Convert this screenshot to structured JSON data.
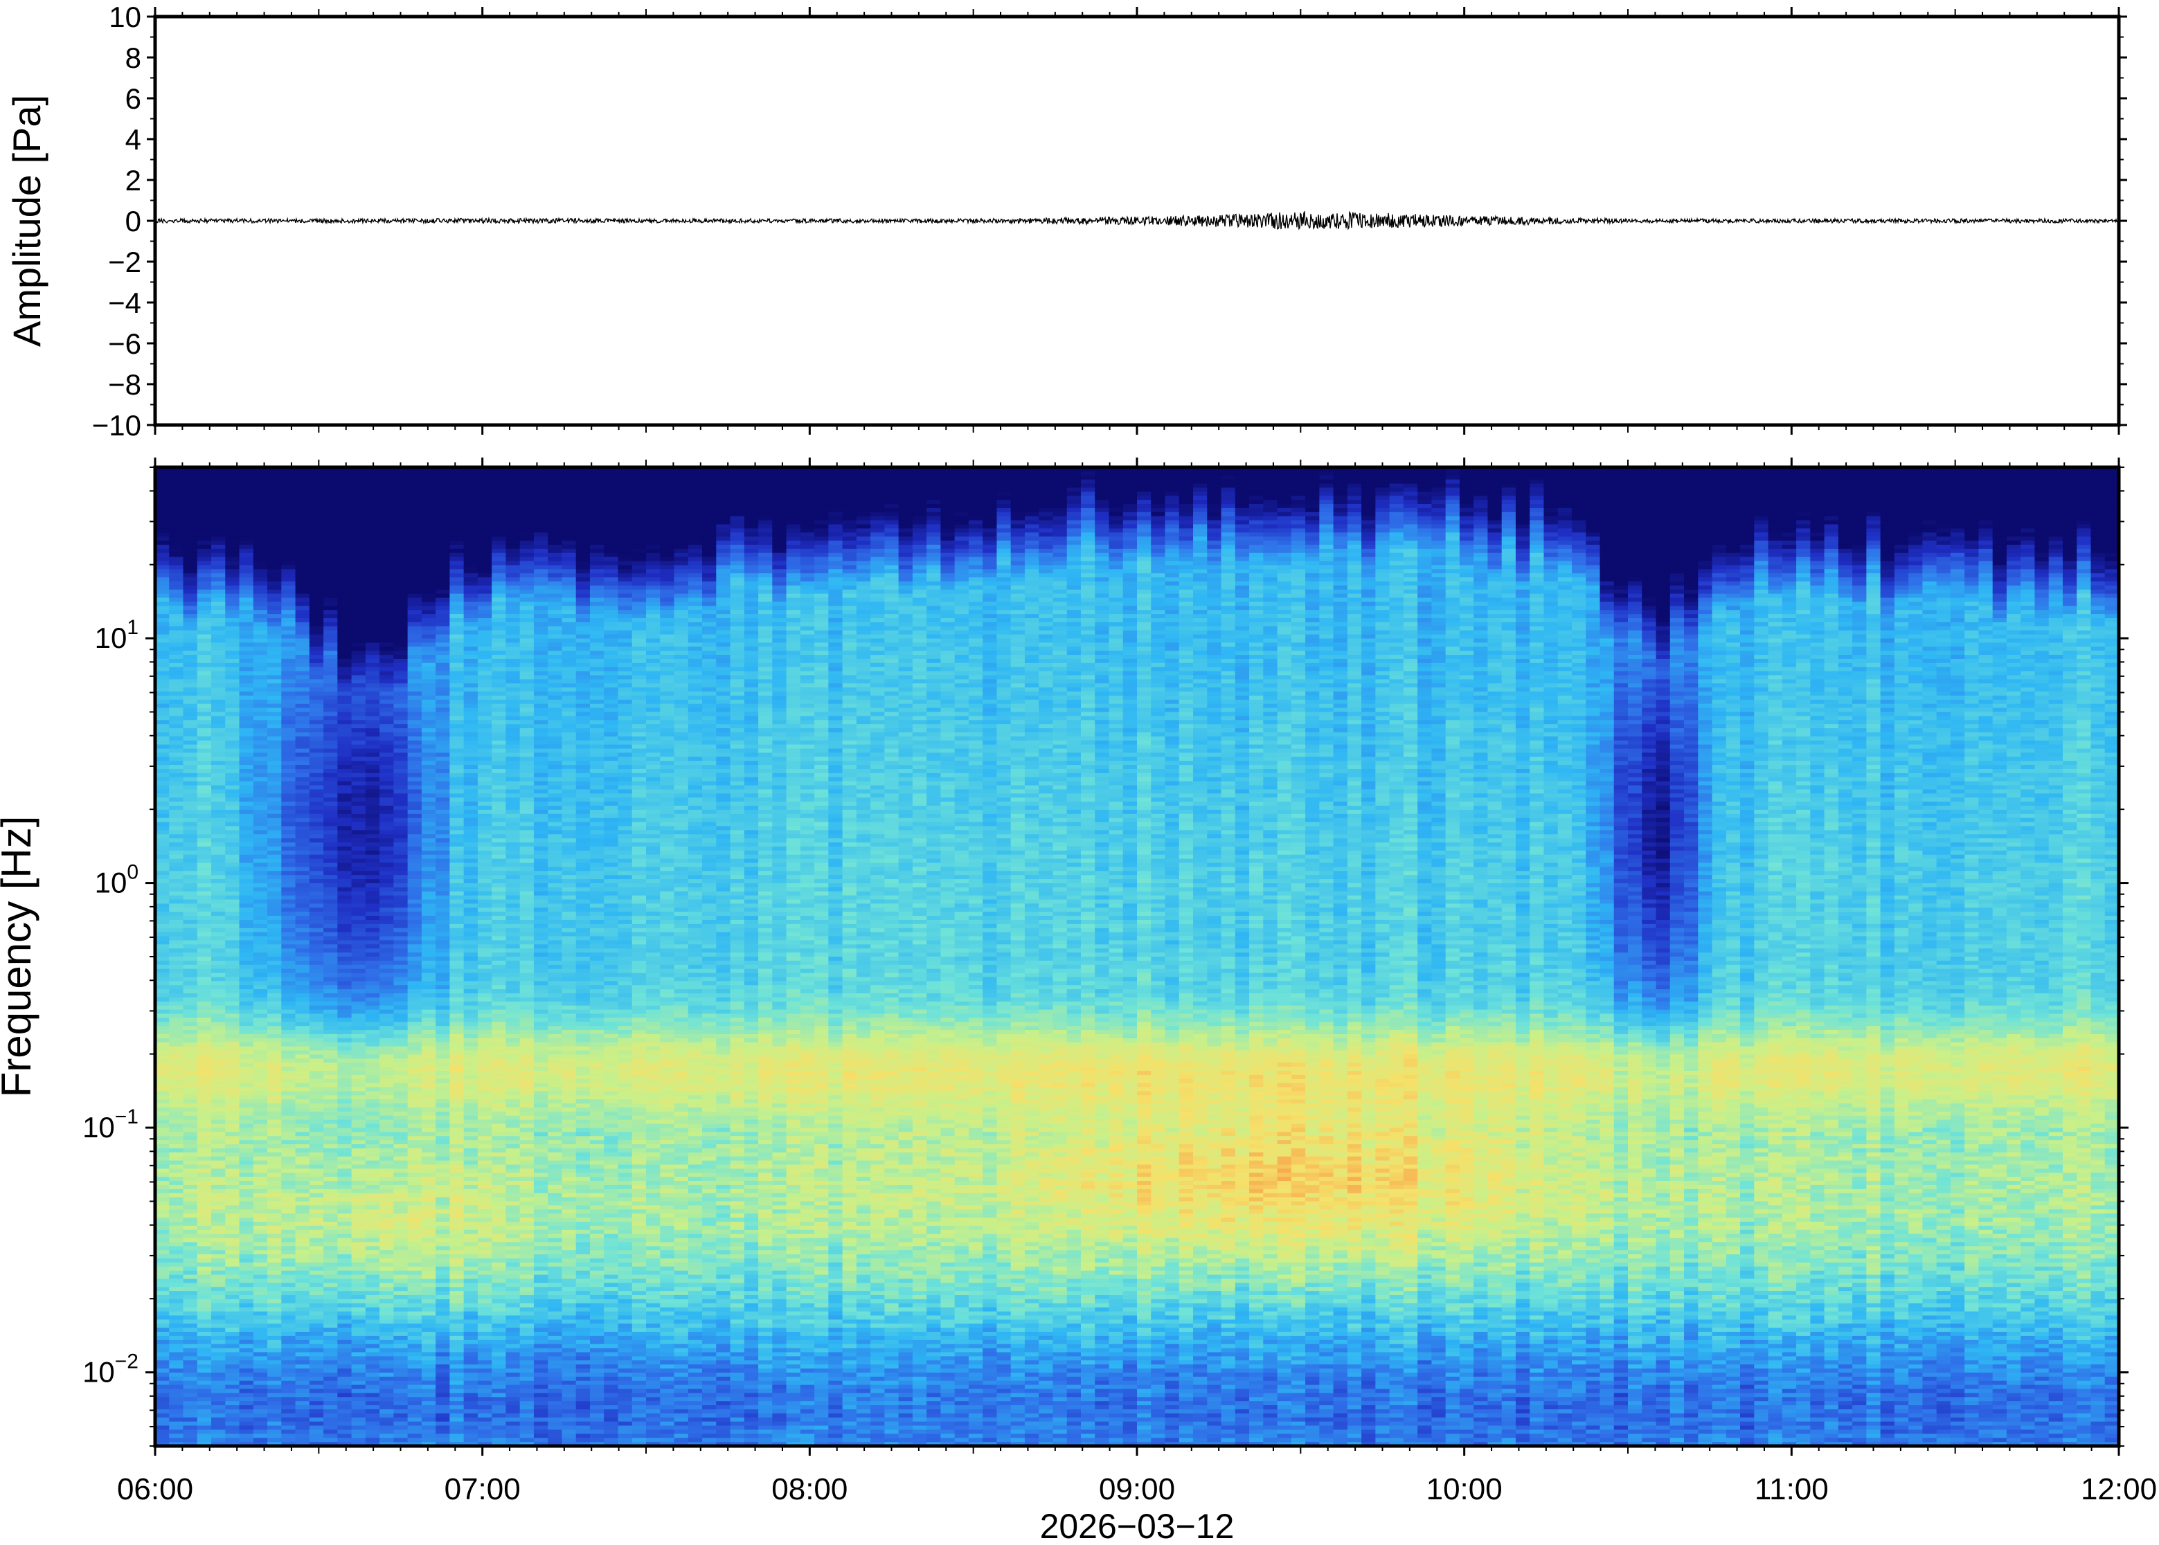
{
  "chart_data": [
    {
      "type": "line",
      "name": "waveform",
      "ylabel": "Amplitude [Pa]",
      "xlabel": "",
      "ylim": [
        -10,
        10
      ],
      "yticks": [
        "10",
        "8",
        "6",
        "4",
        "2",
        "0",
        "−2",
        "−4",
        "−6",
        "−8",
        "−10"
      ],
      "ytick_values": [
        10,
        8,
        6,
        4,
        2,
        0,
        -2,
        -4,
        -6,
        -8,
        -10
      ],
      "xlim": [
        "06:00",
        "12:00"
      ],
      "series": [
        {
          "color": "#000000",
          "x": [
            "06:00",
            "06:30",
            "07:00",
            "07:30",
            "08:00",
            "08:30",
            "09:00",
            "09:15",
            "09:30",
            "09:45",
            "10:00",
            "10:30",
            "11:00",
            "11:30",
            "12:00"
          ],
          "envelope": [
            0.1,
            0.1,
            0.12,
            0.1,
            0.1,
            0.1,
            0.2,
            0.3,
            0.45,
            0.4,
            0.25,
            0.1,
            0.1,
            0.1,
            0.1
          ]
        }
      ],
      "grid": false
    },
    {
      "type": "heatmap",
      "name": "spectrogram",
      "ylabel": "Frequency [Hz]",
      "xlabel": "2026−03−12",
      "yscale": "log",
      "ylim": [
        0.005,
        50
      ],
      "yticks": [
        {
          "base": "10",
          "exp": "1",
          "value": 10
        },
        {
          "base": "10",
          "exp": "0",
          "value": 1
        },
        {
          "base": "10",
          "exp": "−1",
          "value": 0.1
        },
        {
          "base": "10",
          "exp": "−2",
          "value": 0.01
        }
      ],
      "xticks": [
        "06:00",
        "07:00",
        "08:00",
        "09:00",
        "10:00",
        "11:00",
        "12:00"
      ],
      "colormap": [
        "#0b0a6e",
        "#1f2fc4",
        "#2f6fe8",
        "#2fb6f4",
        "#6fe3d8",
        "#c8f08a",
        "#f5e16a",
        "#f7a24a"
      ],
      "grid": false
    }
  ]
}
